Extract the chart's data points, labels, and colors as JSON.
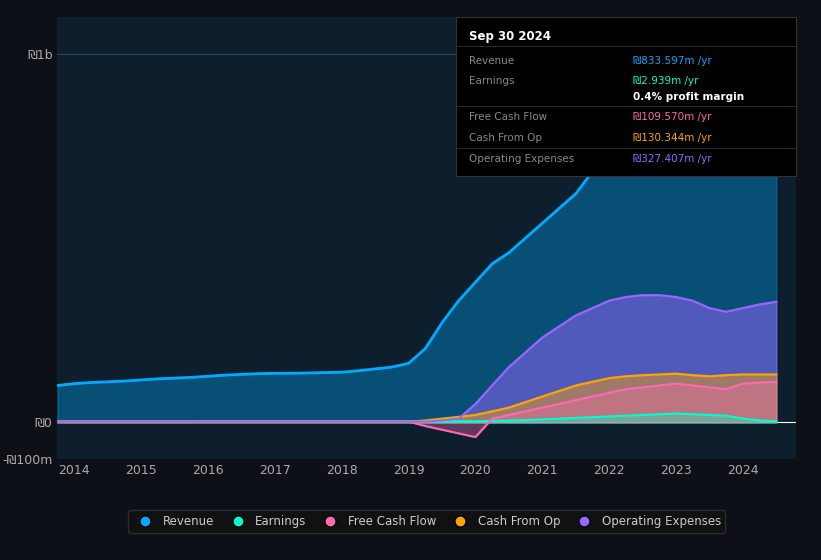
{
  "bg_color": "#0d1117",
  "plot_bg_color": "#0d1f2d",
  "years": [
    2013.75,
    2014,
    2014.25,
    2014.5,
    2014.75,
    2015,
    2015.25,
    2015.5,
    2015.75,
    2016,
    2016.25,
    2016.5,
    2016.75,
    2017,
    2017.25,
    2017.5,
    2017.75,
    2018,
    2018.25,
    2018.5,
    2018.75,
    2019,
    2019.25,
    2019.5,
    2019.75,
    2020,
    2020.25,
    2020.5,
    2020.75,
    2021,
    2021.25,
    2021.5,
    2021.75,
    2022,
    2022.25,
    2022.5,
    2022.75,
    2023,
    2023.25,
    2023.5,
    2023.75,
    2024,
    2024.25,
    2024.5
  ],
  "revenue": [
    100,
    105,
    108,
    110,
    112,
    115,
    118,
    120,
    122,
    125,
    128,
    130,
    132,
    133,
    133,
    134,
    135,
    136,
    140,
    145,
    150,
    160,
    200,
    270,
    330,
    380,
    430,
    460,
    500,
    540,
    580,
    620,
    680,
    750,
    820,
    870,
    920,
    960,
    990,
    970,
    900,
    870,
    840,
    834
  ],
  "earnings": [
    2,
    2,
    2,
    2,
    2,
    2,
    2,
    2,
    2,
    3,
    3,
    3,
    3,
    3,
    3,
    3,
    3,
    3,
    3,
    3,
    3,
    3,
    3,
    3,
    3,
    3,
    4,
    5,
    6,
    8,
    10,
    12,
    14,
    16,
    18,
    20,
    22,
    24,
    22,
    20,
    18,
    10,
    5,
    3
  ],
  "free_cash_flow": [
    2,
    2,
    2,
    2,
    2,
    2,
    2,
    2,
    2,
    2,
    2,
    2,
    2,
    2,
    2,
    2,
    2,
    2,
    2,
    2,
    2,
    2,
    -10,
    -20,
    -30,
    -40,
    10,
    20,
    30,
    40,
    50,
    60,
    70,
    80,
    90,
    95,
    100,
    105,
    100,
    95,
    90,
    105,
    108,
    110
  ],
  "cash_from_op": [
    2,
    2,
    2,
    2,
    2,
    2,
    2,
    2,
    2,
    2,
    2,
    2,
    2,
    2,
    2,
    2,
    2,
    2,
    2,
    2,
    2,
    2,
    5,
    10,
    15,
    20,
    30,
    40,
    55,
    70,
    85,
    100,
    110,
    120,
    125,
    128,
    130,
    132,
    128,
    125,
    128,
    130,
    130,
    130
  ],
  "operating_expenses": [
    2,
    2,
    2,
    2,
    2,
    2,
    2,
    2,
    2,
    2,
    2,
    2,
    2,
    2,
    2,
    2,
    2,
    2,
    2,
    2,
    2,
    2,
    2,
    5,
    10,
    50,
    100,
    150,
    190,
    230,
    260,
    290,
    310,
    330,
    340,
    345,
    345,
    340,
    330,
    310,
    300,
    310,
    320,
    327
  ],
  "ylim_min": -100,
  "ylim_max": 1100,
  "yticks": [
    -100,
    0,
    1000
  ],
  "ytick_labels": [
    "-₪100m",
    "₪0",
    "₪1b"
  ],
  "x_tick_years": [
    2014,
    2015,
    2016,
    2017,
    2018,
    2019,
    2020,
    2021,
    2022,
    2023,
    2024
  ],
  "revenue_color": "#00aaff",
  "earnings_color": "#00ffcc",
  "free_cash_flow_color": "#ff69b4",
  "cash_from_op_color": "#ffa500",
  "operating_expenses_color": "#9966ff",
  "info_box": {
    "title": "Sep 30 2024",
    "rows": [
      {
        "label": "Revenue",
        "value": "₪833.597m /yr",
        "color": "#00aaff",
        "bold": false
      },
      {
        "label": "Earnings",
        "value": "₪2.939m /yr",
        "color": "#00ffcc",
        "bold": false
      },
      {
        "label": "",
        "value": "0.4% profit margin",
        "color": "#ffffff",
        "bold": true
      },
      {
        "label": "Free Cash Flow",
        "value": "₪109.570m /yr",
        "color": "#ff69b4",
        "bold": false
      },
      {
        "label": "Cash From Op",
        "value": "₪130.344m /yr",
        "color": "#ffa500",
        "bold": false
      },
      {
        "label": "Operating Expenses",
        "value": "₪327.407m /yr",
        "color": "#9966ff",
        "bold": false
      }
    ]
  },
  "legend_entries": [
    {
      "label": "Revenue",
      "color": "#00aaff"
    },
    {
      "label": "Earnings",
      "color": "#00ffcc"
    },
    {
      "label": "Free Cash Flow",
      "color": "#ff69b4"
    },
    {
      "label": "Cash From Op",
      "color": "#ffa500"
    },
    {
      "label": "Operating Expenses",
      "color": "#9966ff"
    }
  ]
}
